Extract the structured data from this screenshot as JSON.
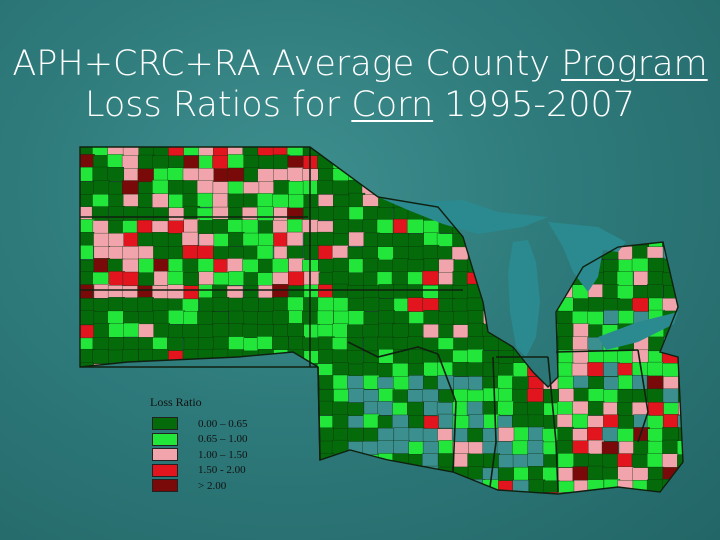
{
  "title": {
    "part1": "APH+CRC+RA Average County ",
    "part2": "Program",
    "part3": "Loss Ratios for ",
    "part4": "Corn",
    "part5": " 1995-2007"
  },
  "legend": {
    "heading": "Loss Ratio",
    "items": [
      {
        "label": "0.00 – 0.65",
        "color": "#056b0a"
      },
      {
        "label": "0.65 – 1.00",
        "color": "#22e63a"
      },
      {
        "label": "1.00 – 1.50",
        "color": "#f2a4ac"
      },
      {
        "label": "1.50 - 2.00",
        "color": "#e2141e"
      },
      {
        "label": "> 2.00",
        "color": "#7a0a0a"
      }
    ]
  },
  "colors": {
    "background": "#2e7a7b",
    "lakes": "#2a8a8f",
    "no_data": "#3b8f8f",
    "state_border": "#102010"
  }
}
